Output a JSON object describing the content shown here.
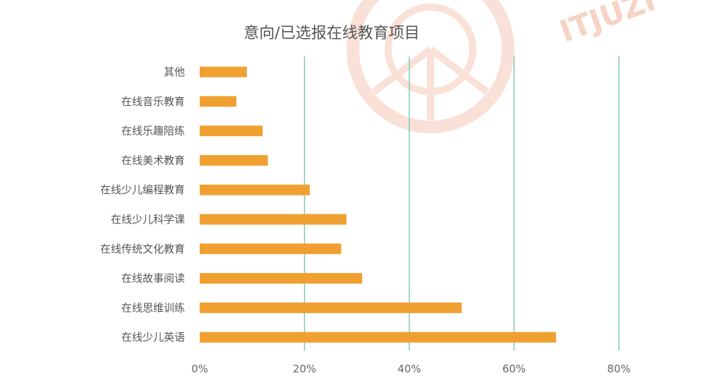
{
  "chart_data": {
    "type": "bar",
    "orientation": "horizontal",
    "title": "意向/已选报在线教育项目",
    "xlabel": "",
    "ylabel": "",
    "categories": [
      "其他",
      "在线音乐教育",
      "在线乐趣陪练",
      "在线美术教育",
      "在线少儿编程教育",
      "在线少儿科学课",
      "在线传统文化教育",
      "在线故事阅读",
      "在线思维训练",
      "在线少儿英语"
    ],
    "values": [
      9,
      7,
      12,
      13,
      21,
      28,
      27,
      31,
      50,
      68
    ],
    "xlim": [
      0,
      80
    ],
    "xticks": [
      0,
      20,
      40,
      60,
      80
    ],
    "xtick_labels": [
      "0%",
      "20%",
      "40%",
      "60%",
      "80%"
    ],
    "grid": "vertical",
    "legend": "none",
    "colors": {
      "bar": "#f0a030",
      "grid": "#7fc9b8",
      "text": "#555555"
    }
  },
  "watermark": {
    "text": "ITJUZI",
    "icon": "orange-slice-logo"
  }
}
